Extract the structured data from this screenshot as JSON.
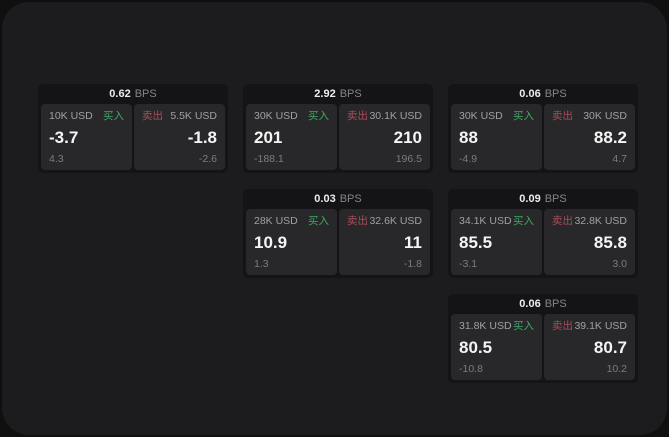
{
  "colors": {
    "screen_bg": "#0f0f10",
    "window_bg": "#1c1c1e",
    "card_bg": "#141416",
    "panel_bg": "#28282a",
    "buy_green": "#3ea963",
    "sell_red": "#aa4c59",
    "price_text": "#f5f5f5",
    "muted_text": "#a0a0a2"
  },
  "cards": [
    {
      "bps": "0.62",
      "unit": "BPS",
      "buy": {
        "amount": "10K USD",
        "label": "买入",
        "value": "-3.7",
        "sub": "4.3"
      },
      "sell": {
        "label": "卖出",
        "amount": "5.5K USD",
        "value": "-1.8",
        "sub": "-2.6"
      }
    },
    {
      "bps": "2.92",
      "unit": "BPS",
      "buy": {
        "amount": "30K USD",
        "label": "买入",
        "value": "201",
        "sub": "-188.1"
      },
      "sell": {
        "label": "卖出",
        "amount": "30.1K USD",
        "value": "210",
        "sub": "196.5"
      }
    },
    {
      "bps": "0.06",
      "unit": "BPS",
      "buy": {
        "amount": "30K USD",
        "label": "买入",
        "value": "88",
        "sub": "-4.9"
      },
      "sell": {
        "label": "卖出",
        "amount": "30K USD",
        "value": "88.2",
        "sub": "4.7"
      }
    },
    {
      "bps": "0.03",
      "unit": "BPS",
      "buy": {
        "amount": "28K USD",
        "label": "买入",
        "value": "10.9",
        "sub": "1.3"
      },
      "sell": {
        "label": "卖出",
        "amount": "32.6K USD",
        "value": "11",
        "sub": "-1.8"
      }
    },
    {
      "bps": "0.09",
      "unit": "BPS",
      "buy": {
        "amount": "34.1K USD",
        "label": "买入",
        "value": "85.5",
        "sub": "-3.1"
      },
      "sell": {
        "label": "卖出",
        "amount": "32.8K USD",
        "value": "85.8",
        "sub": "3.0"
      }
    },
    {
      "bps": "0.06",
      "unit": "BPS",
      "buy": {
        "amount": "31.8K USD",
        "label": "买入",
        "value": "80.5",
        "sub": "-10.8"
      },
      "sell": {
        "label": "卖出",
        "amount": "39.1K USD",
        "value": "80.7",
        "sub": "10.2"
      }
    }
  ]
}
